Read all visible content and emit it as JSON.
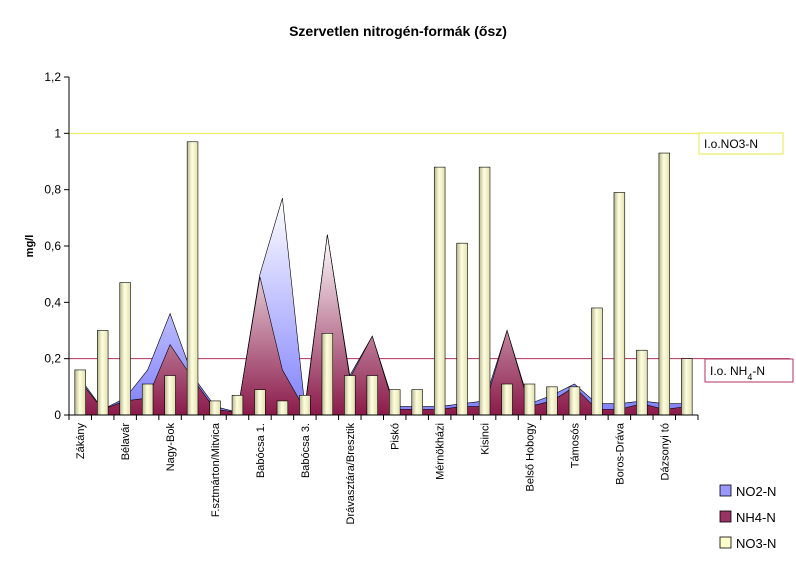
{
  "chart_data": {
    "type": "bar",
    "title": "Szervetlen nitrogén-formák (ősz)",
    "xlabel": "",
    "ylabel": "mg/l",
    "ylim": [
      0,
      1.2
    ],
    "yticks": [
      "0",
      "0,2",
      "0,4",
      "0,6",
      "0,8",
      "1",
      "1,2"
    ],
    "yticks_values": [
      0,
      0.2,
      0.4,
      0.6,
      0.8,
      1.0,
      1.2
    ],
    "grid": false,
    "legend_position": "bottom-right",
    "categories": [
      "Zákány",
      "",
      "Bélavár",
      "",
      "Nagy-Bok",
      "",
      "F.sztmárton/Mitvica",
      "",
      "Babócsa 1.",
      "",
      "Babócsa 3.",
      "",
      "Drávasztára/Bresztik",
      "",
      "Piskó",
      "",
      "Mérnökházi",
      "",
      "Kisinci",
      "",
      "Belső Hobogy",
      "",
      "Támosós",
      "",
      "Boros-Dráva",
      "",
      "Dázsonyi tó",
      ""
    ],
    "series": [
      {
        "name": "NO2-N",
        "kind": "area",
        "color": "#9999ff",
        "values": [
          0.13,
          0.02,
          0.06,
          0.16,
          0.36,
          0.14,
          0.03,
          0.01,
          0.5,
          0.77,
          0.03,
          0.64,
          0.14,
          0.28,
          0.03,
          0.03,
          0.03,
          0.04,
          0.05,
          0.3,
          0.04,
          0.07,
          0.11,
          0.04,
          0.04,
          0.05,
          0.04,
          0.04
        ]
      },
      {
        "name": "NH4-N",
        "kind": "area",
        "color": "#993366",
        "values": [
          0.12,
          0.02,
          0.05,
          0.06,
          0.25,
          0.13,
          0.02,
          0.01,
          0.49,
          0.16,
          0.02,
          0.64,
          0.13,
          0.28,
          0.02,
          0.02,
          0.02,
          0.03,
          0.03,
          0.3,
          0.03,
          0.05,
          0.1,
          0.02,
          0.02,
          0.04,
          0.02,
          0.03
        ]
      },
      {
        "name": "NO3-N",
        "kind": "bar",
        "color": "#ffffcc",
        "values": [
          0.16,
          0.3,
          0.47,
          0.11,
          0.14,
          0.97,
          0.05,
          0.07,
          0.09,
          0.05,
          0.07,
          0.29,
          0.14,
          0.14,
          0.09,
          0.09,
          0.88,
          0.61,
          0.88,
          0.11,
          0.11,
          0.1,
          0.1,
          0.38,
          0.79,
          0.23,
          0.93,
          0.2
        ]
      }
    ],
    "reference_lines": [
      {
        "label": "I.o.NO3-N",
        "value": 1.0,
        "color": "#e8e84a"
      },
      {
        "label_main": "I.o. NH",
        "label_sub": "4",
        "label_tail": "-N",
        "value": 0.2,
        "color": "#b03060"
      }
    ]
  }
}
